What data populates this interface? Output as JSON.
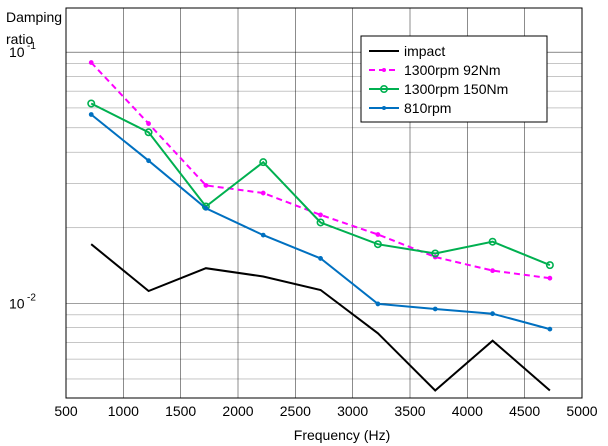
{
  "chart_data": {
    "type": "line",
    "title": "",
    "xlabel": "Frequency (Hz)",
    "ylabel_lines": [
      "Damping",
      "ratio"
    ],
    "xlim": [
      500,
      5000
    ],
    "ylim": [
      0.0042,
      0.15
    ],
    "yscale": "log",
    "grid": true,
    "legend_position": "top-right",
    "x_ticks": [
      500,
      1000,
      1500,
      2000,
      2500,
      3000,
      3500,
      4000,
      4500,
      5000
    ],
    "x_tick_labels": [
      "500",
      "1000",
      "1500",
      "2000",
      "2500",
      "3000",
      "3500",
      "4000",
      "4500",
      "5000"
    ],
    "y_ticks": [
      {
        "value": 0.1,
        "base": "10",
        "exp": "-1"
      },
      {
        "value": 0.01,
        "base": "10",
        "exp": "-2"
      }
    ],
    "x": [
      720,
      1220,
      1720,
      2220,
      2720,
      3220,
      3720,
      4220,
      4720
    ],
    "series": [
      {
        "name": "impact",
        "color": "#000000",
        "dash": "",
        "marker": "none",
        "values": [
          0.0172,
          0.0112,
          0.0138,
          0.0128,
          0.0113,
          0.0076,
          0.0045,
          0.0071,
          0.0045
        ]
      },
      {
        "name": "1300rpm 92Nm",
        "color": "#ff00ff",
        "dash": "6,4",
        "marker": "dot",
        "values": [
          0.091,
          0.052,
          0.0295,
          0.0275,
          0.0225,
          0.0188,
          0.0153,
          0.0135,
          0.0126
        ]
      },
      {
        "name": "1300rpm 150Nm",
        "color": "#00b050",
        "dash": "",
        "marker": "circle",
        "values": [
          0.0625,
          0.048,
          0.0243,
          0.0365,
          0.021,
          0.0172,
          0.0158,
          0.0176,
          0.0142
        ]
      },
      {
        "name": "810rpm",
        "color": "#0070c0",
        "dash": "",
        "marker": "dot",
        "values": [
          0.0565,
          0.037,
          0.0239,
          0.0187,
          0.0151,
          0.00995,
          0.0095,
          0.0091,
          0.0079
        ]
      }
    ]
  }
}
